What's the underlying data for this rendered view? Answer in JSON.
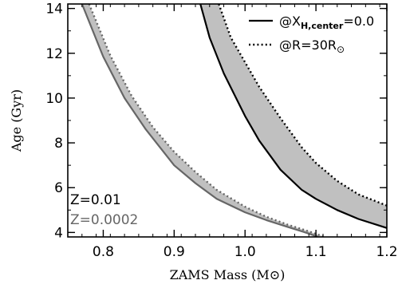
{
  "chart_data": {
    "type": "line",
    "xlabel": "ZAMS Mass (M⊙)",
    "ylabel": "Age (Gyr)",
    "xlim": [
      0.75,
      1.2
    ],
    "ylim": [
      3.8,
      14.2
    ],
    "x_ticks": [
      "0.8",
      "0.9",
      "1.0",
      "1.1",
      "1.2"
    ],
    "x_tick_values": [
      0.8,
      0.9,
      1.0,
      1.1,
      1.2
    ],
    "y_ticks": [
      "4",
      "6",
      "8",
      "10",
      "12",
      "14"
    ],
    "y_tick_values": [
      4,
      6,
      8,
      10,
      12,
      14
    ],
    "legend": [
      {
        "style": "solid",
        "label_main": "@X",
        "label_sub": "H,center",
        "label_tail": "=0.0"
      },
      {
        "style": "dotted",
        "label_main": "@R=30R",
        "label_symbol": "⊙"
      }
    ],
    "annotations": [
      {
        "text": "Z=0.01",
        "color": "#000000"
      },
      {
        "text": "Z=0.0002",
        "color": "#666666"
      }
    ],
    "band_color": "#c0c0c0",
    "series": [
      {
        "group": "Z=0.01",
        "style": "solid",
        "color": "#000000",
        "x": [
          0.937,
          0.95,
          0.97,
          1.0,
          1.02,
          1.05,
          1.08,
          1.1,
          1.13,
          1.16,
          1.2
        ],
        "y": [
          14.2,
          12.7,
          11.1,
          9.2,
          8.1,
          6.8,
          5.9,
          5.5,
          5.0,
          4.6,
          4.2
        ]
      },
      {
        "group": "Z=0.01",
        "style": "dotted",
        "color": "#000000",
        "x": [
          0.963,
          0.98,
          1.0,
          1.02,
          1.05,
          1.08,
          1.1,
          1.13,
          1.16,
          1.2
        ],
        "y": [
          14.2,
          12.7,
          11.6,
          10.5,
          9.1,
          7.8,
          7.1,
          6.3,
          5.7,
          5.2
        ]
      },
      {
        "group": "Z=0.0002",
        "style": "solid",
        "color": "#666666",
        "x": [
          0.77,
          0.8,
          0.83,
          0.86,
          0.9,
          0.93,
          0.96,
          1.0,
          1.03,
          1.06,
          1.09,
          1.103
        ],
        "y": [
          14.2,
          11.85,
          10.0,
          8.6,
          7.0,
          6.2,
          5.5,
          4.9,
          4.55,
          4.25,
          3.95,
          3.8
        ]
      },
      {
        "group": "Z=0.0002",
        "style": "dotted",
        "color": "#666666",
        "x": [
          0.78,
          0.81,
          0.84,
          0.87,
          0.9,
          0.93,
          0.96,
          1.0,
          1.03,
          1.06,
          1.09,
          1.112
        ],
        "y": [
          14.2,
          11.9,
          10.1,
          8.7,
          7.6,
          6.7,
          5.9,
          5.15,
          4.7,
          4.35,
          4.05,
          3.8
        ]
      }
    ]
  }
}
